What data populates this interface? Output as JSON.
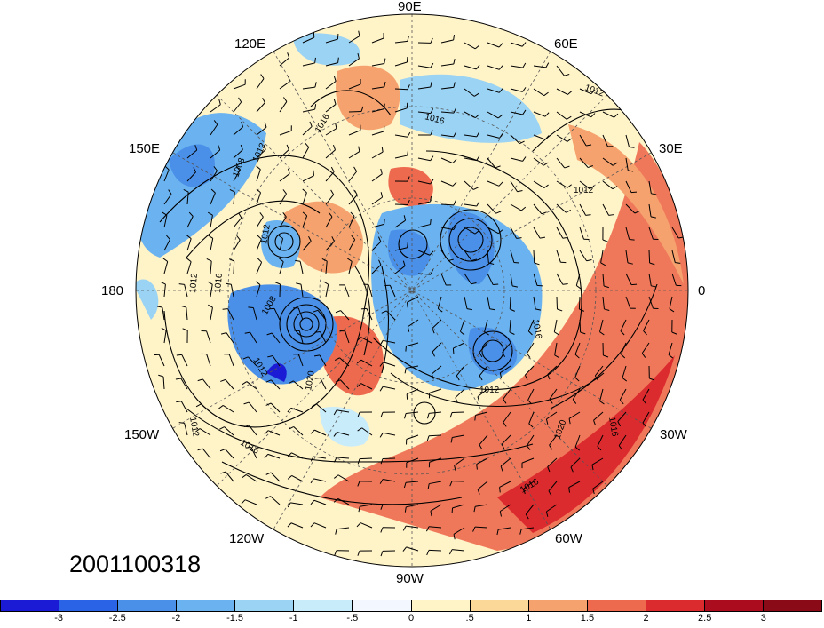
{
  "map": {
    "projection": "north-polar-stereographic",
    "longitude_labels": {
      "top": "90E",
      "top_right": "60E",
      "upper_right": "30E",
      "right": "0",
      "lower_right": "30W",
      "bottom_right": "60W",
      "bottom": "90W",
      "bottom_left": "120W",
      "lower_left": "150W",
      "left": "180",
      "upper_left": "150E",
      "top_left": "120E"
    },
    "isobar_labels": [
      "1012",
      "1016",
      "1008",
      "1020"
    ],
    "date_stamp": "2001100318"
  },
  "colorbar": {
    "ticks": [
      "-3",
      "-2.5",
      "-2",
      "-1.5",
      "-1",
      "-.5",
      "0",
      ".5",
      "1",
      "1.5",
      "2",
      "2.5",
      "3"
    ],
    "colors": [
      "#1b1bd6",
      "#2b63e6",
      "#4a90e8",
      "#6bb3f0",
      "#9ad3f4",
      "#c9ecfa",
      "#f3f7ff",
      "#fff3c8",
      "#fbd898",
      "#f5a26e",
      "#ee6a4e",
      "#dc2b2e",
      "#ab0d1e",
      "#8a0a18"
    ]
  }
}
